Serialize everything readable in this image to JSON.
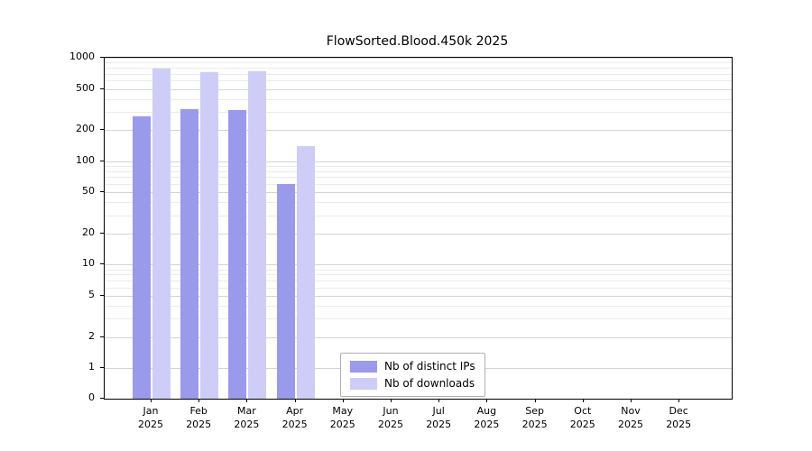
{
  "title": "FlowSorted.Blood.450k 2025",
  "legend": {
    "items": [
      {
        "label": "Nb of distinct IPs",
        "color": "#9a9aec"
      },
      {
        "label": "Nb of downloads",
        "color": "#cdcdf8"
      }
    ]
  },
  "chart_data": {
    "type": "bar",
    "title": "FlowSorted.Blood.450k 2025",
    "categories": [
      "Jan 2025",
      "Feb 2025",
      "Mar 2025",
      "Apr 2025",
      "May 2025",
      "Jun 2025",
      "Jul 2025",
      "Aug 2025",
      "Sep 2025",
      "Oct 2025",
      "Nov 2025",
      "Dec 2025"
    ],
    "series": [
      {
        "name": "Nb of distinct IPs",
        "color": "#9a9aec",
        "values": [
          270,
          320,
          310,
          60,
          0,
          0,
          0,
          0,
          0,
          0,
          0,
          0
        ]
      },
      {
        "name": "Nb of downloads",
        "color": "#cdcdf8",
        "values": [
          790,
          730,
          740,
          140,
          0,
          0,
          0,
          0,
          0,
          0,
          0,
          0
        ]
      }
    ],
    "xlabel": "",
    "ylabel": "",
    "y_scale": "log",
    "y_ticks": [
      0,
      1,
      2,
      5,
      10,
      20,
      50,
      100,
      200,
      500,
      1000
    ],
    "ylim": [
      0,
      1000
    ],
    "grid": true,
    "legend_position": "lower-center-inside"
  }
}
